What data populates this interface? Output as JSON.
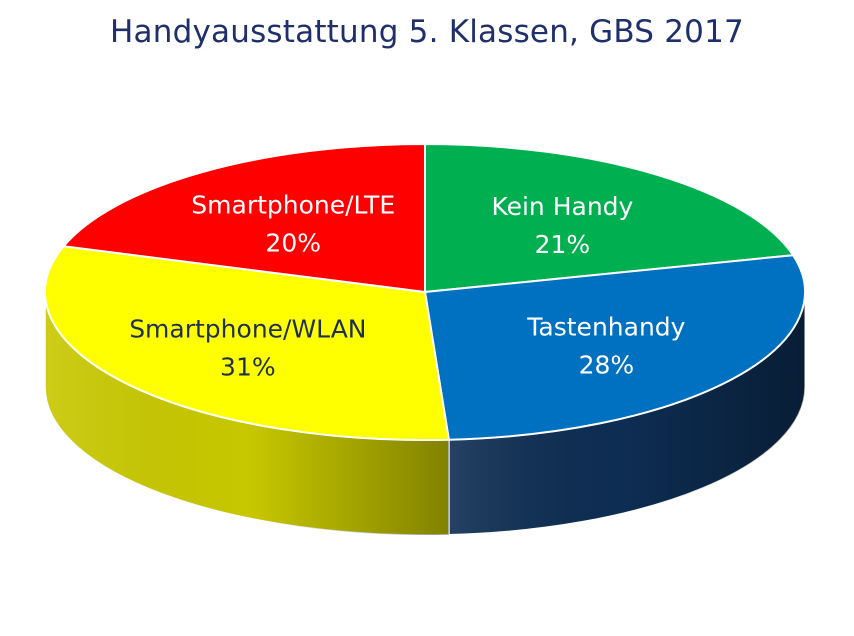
{
  "chart_data": {
    "type": "pie",
    "title": "Handyausstattung 5. Klassen, GBS 2017",
    "slices": [
      {
        "label": "Kein Handy",
        "value": 21,
        "value_label": "21%",
        "color": "#00b050",
        "side_color": "#007a36",
        "label_color": "#ffffff"
      },
      {
        "label": "Tastenhandy",
        "value": 28,
        "value_label": "28%",
        "color": "#0070c0",
        "side_color": "#0d2d52",
        "label_color": "#ffffff"
      },
      {
        "label": "Smartphone/WLAN",
        "value": 31,
        "value_label": "31%",
        "color": "#ffff00",
        "side_color": "#c8c800",
        "label_color": "#1f2f4f"
      },
      {
        "label": "Smartphone/LTE",
        "value": 20,
        "value_label": "20%",
        "color": "#ff0000",
        "side_color": "#a00000",
        "label_color": "#ffffff"
      }
    ],
    "legend": "none",
    "style": "3d"
  }
}
